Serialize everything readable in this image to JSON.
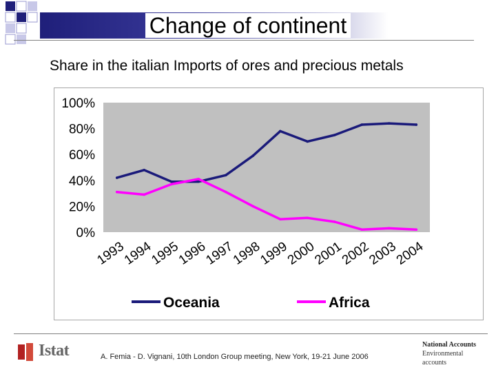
{
  "slide": {
    "title": "Change of continent",
    "subtitle": "Share in the italian Imports of ores and precious metals"
  },
  "footer": {
    "logo_text": "Istat",
    "citation": "A. Femia - D. Vignani, 10th London Group meeting, New York, 19-21 June 2006",
    "side_note_line1": "National Accounts",
    "side_note_line2": "Environmental",
    "side_note_line3": "accounts"
  },
  "colors": {
    "oceania": "#1a1a7a",
    "africa": "#ff00ff",
    "plot_bg": "#c0c0c0"
  },
  "chart_data": {
    "type": "line",
    "title": "",
    "xlabel": "",
    "ylabel": "",
    "categories": [
      "1993",
      "1994",
      "1995",
      "1996",
      "1997",
      "1998",
      "1999",
      "2000",
      "2001",
      "2002",
      "2003",
      "2004"
    ],
    "series": [
      {
        "name": "Oceania",
        "values": [
          42,
          48,
          39,
          39,
          44,
          59,
          78,
          70,
          75,
          83,
          84,
          83
        ]
      },
      {
        "name": "Africa",
        "values": [
          31,
          29,
          37,
          41,
          31,
          20,
          10,
          11,
          8,
          2,
          3,
          2
        ]
      }
    ],
    "ylim": [
      0,
      100
    ],
    "yticks": [
      "0%",
      "20%",
      "40%",
      "60%",
      "80%",
      "100%"
    ],
    "grid": false,
    "legend": "bottom"
  }
}
